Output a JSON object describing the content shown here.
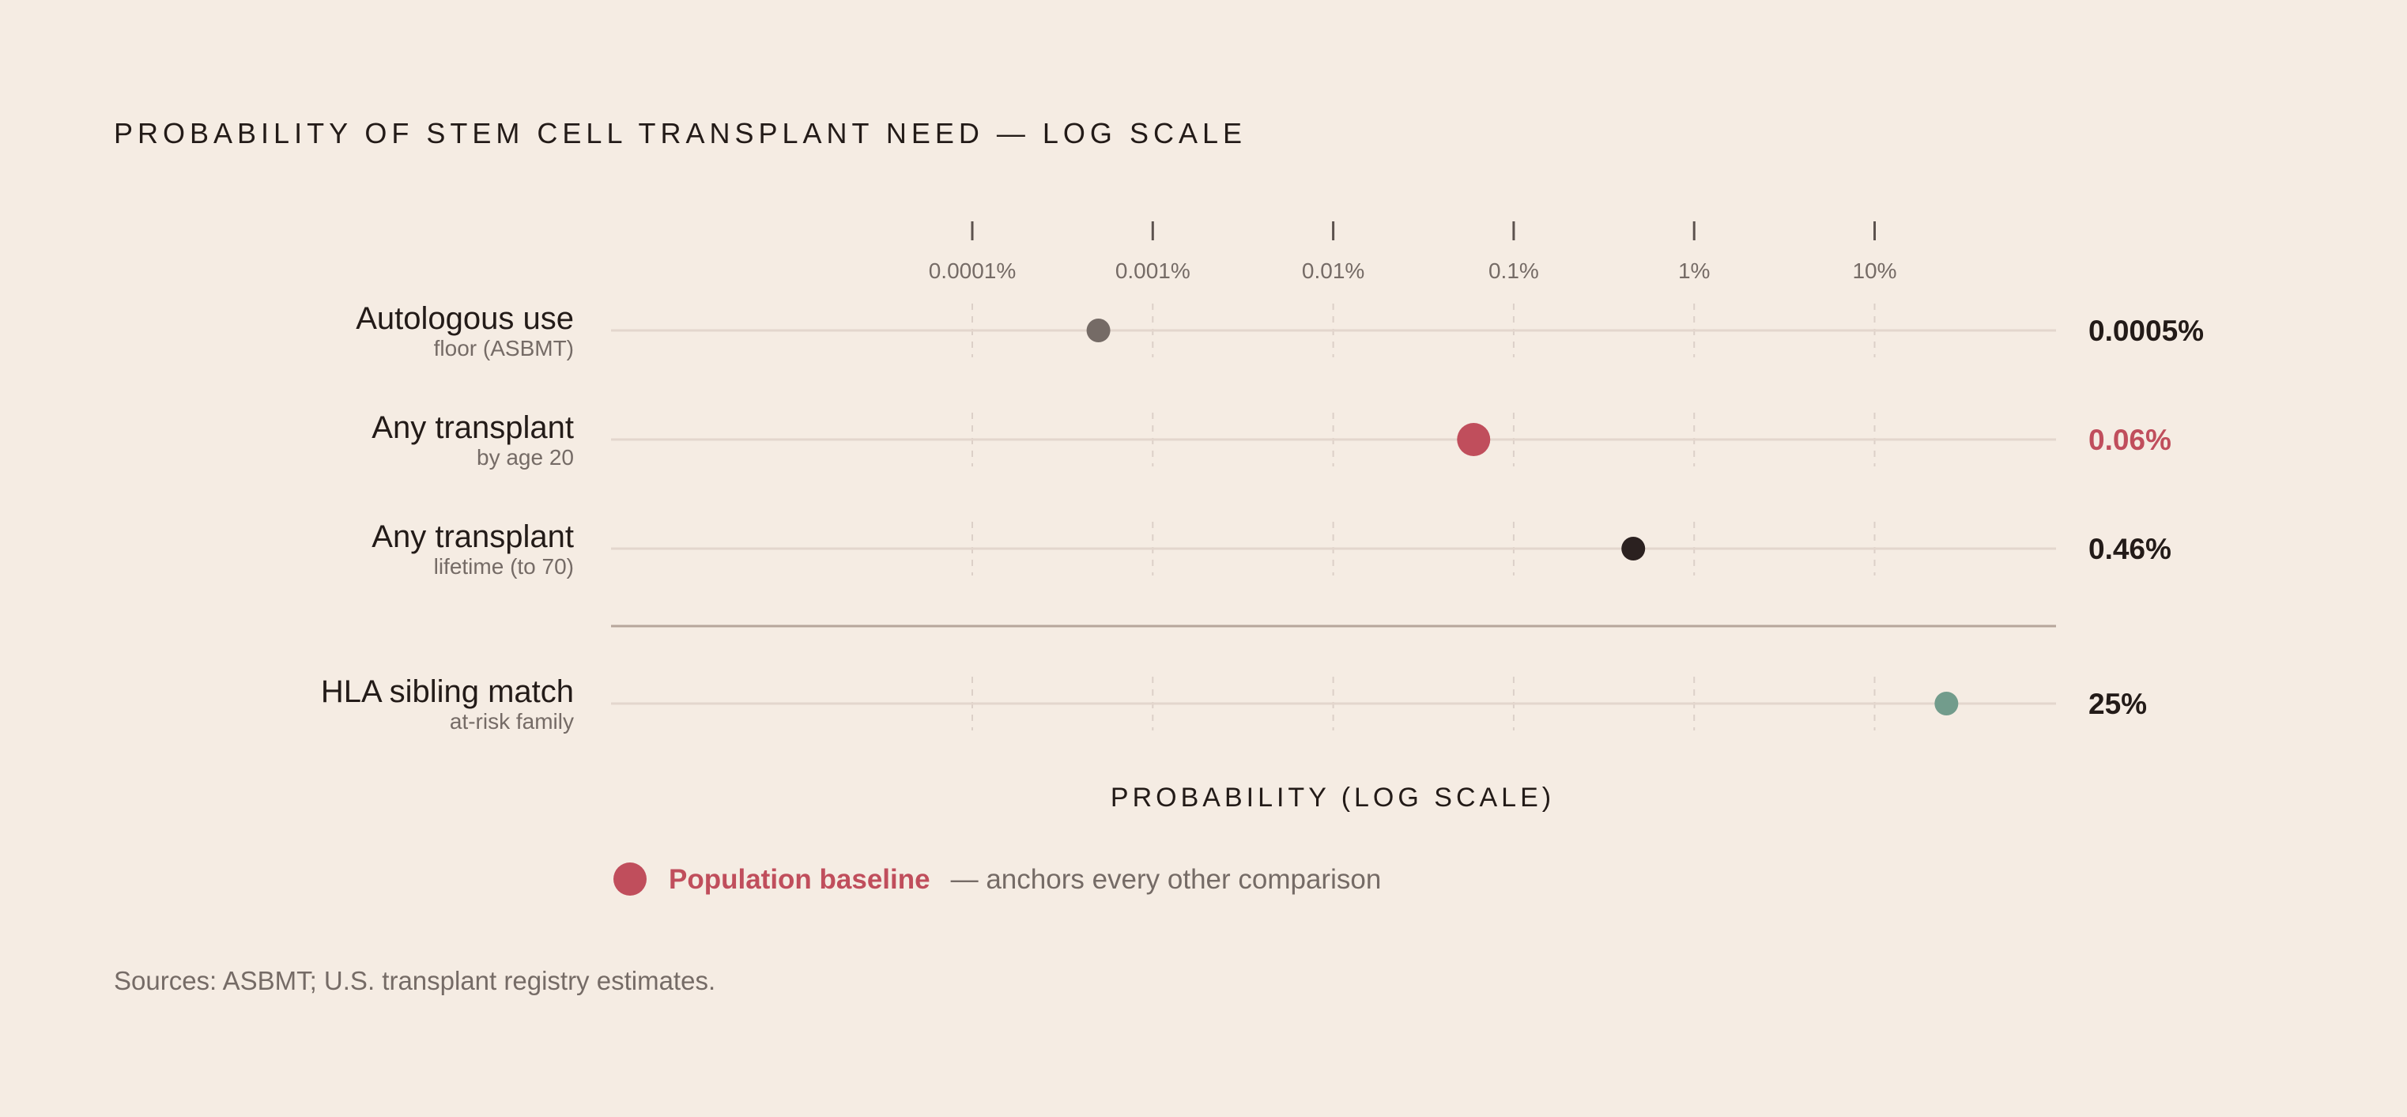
{
  "title": "PROBABILITY OF STEM CELL TRANSPLANT NEED — LOG SCALE",
  "sources": "Sources: ASBMT; U.S. transplant registry estimates.",
  "legend": {
    "label": "Population baseline",
    "note": "— anchors every other comparison",
    "color": "#c04e5c"
  },
  "chart_data": {
    "type": "scatter",
    "title": "PROBABILITY OF STEM CELL TRANSPLANT NEED — LOG SCALE",
    "xlabel": "PROBABILITY (LOG SCALE)",
    "x_scale": "log",
    "xlim": [
      1e-05,
      100
    ],
    "ticks": [
      {
        "value": 0.0001,
        "label": "0.0001%"
      },
      {
        "value": 0.001,
        "label": "0.001%"
      },
      {
        "value": 0.01,
        "label": "0.01%"
      },
      {
        "value": 0.1,
        "label": "0.1%"
      },
      {
        "value": 1,
        "label": "1%"
      },
      {
        "value": 10,
        "label": "10%"
      }
    ],
    "rows": [
      {
        "label": "Autologous use",
        "sublabel": "floor (ASBMT)",
        "value": 0.0005,
        "value_label": "0.0005%",
        "color": "#756b66",
        "highlight": false
      },
      {
        "label": "Any transplant",
        "sublabel": "by age 20",
        "value": 0.06,
        "value_label": "0.06%",
        "color": "#c04e5c",
        "highlight": true
      },
      {
        "label": "Any transplant",
        "sublabel": "lifetime (to 70)",
        "value": 0.46,
        "value_label": "0.46%",
        "color": "#2b2120",
        "highlight": false
      },
      {
        "label": "HLA sibling match",
        "sublabel": "at-risk family",
        "value": 25,
        "value_label": "25%",
        "color": "#729c8c",
        "highlight": false
      }
    ],
    "grid": true,
    "separator_after_row": 2
  }
}
